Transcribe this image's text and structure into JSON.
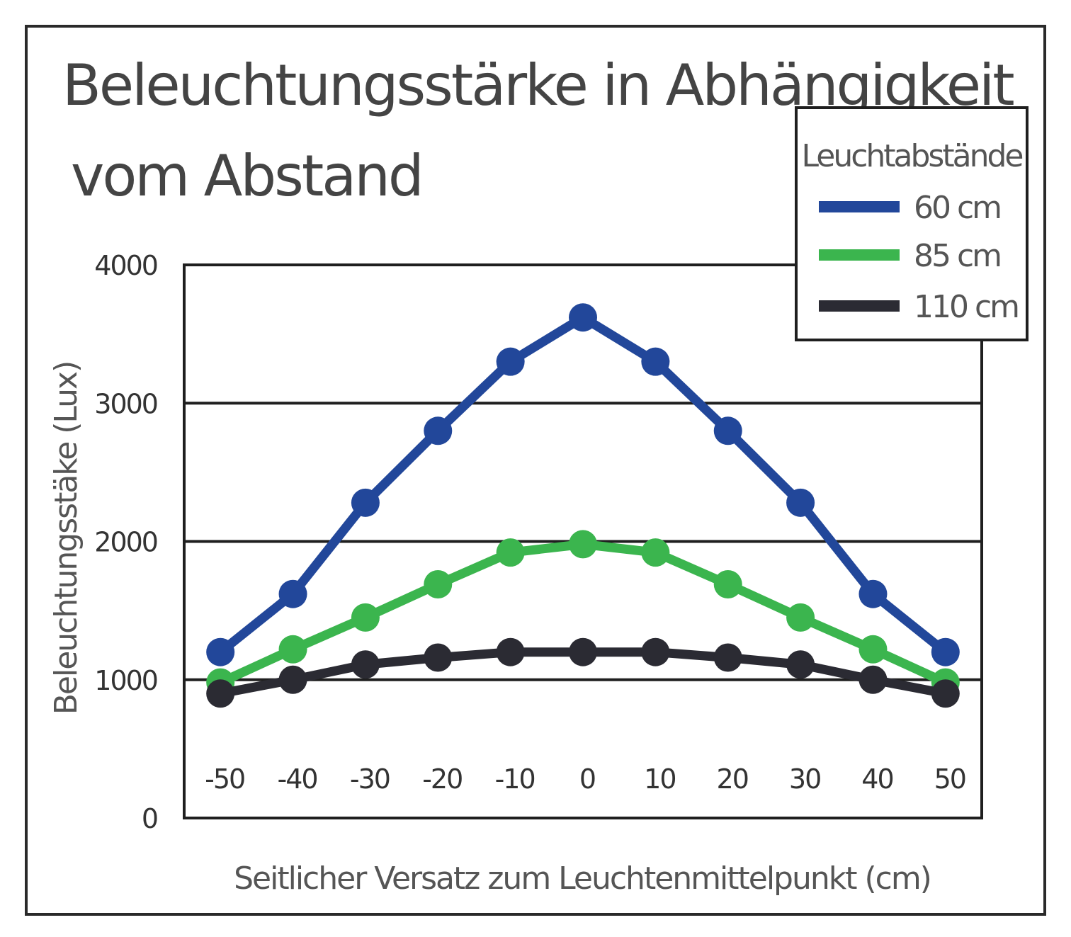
{
  "chart_data": {
    "type": "line",
    "title_lines": [
      "Beleuchtungsstärke in Abhängigkeit",
      "vom Abstand"
    ],
    "xlabel": "Seitlicher Versatz zum Leuchtenmittelpunkt (cm)",
    "ylabel": "Beleuchtungsstäke (Lux)",
    "x": [
      -50,
      -40,
      -30,
      -20,
      -10,
      0,
      10,
      20,
      30,
      40,
      50
    ],
    "x_tick_labels": [
      "-50",
      "-40",
      "-30",
      "-20",
      "-10",
      "0",
      "10",
      "20",
      "30",
      "40",
      "50"
    ],
    "y_ticks": [
      0,
      1000,
      2000,
      3000,
      4000
    ],
    "y_tick_labels": [
      "0",
      "1000",
      "2000",
      "3000",
      "4000"
    ],
    "ylim": [
      0,
      4000
    ],
    "grid": "horizontal",
    "legend_position": "top-right",
    "legend_title": "Leuchtabstände",
    "series": [
      {
        "name": "60 cm",
        "color": "#22479a",
        "values": [
          1200,
          1620,
          2280,
          2800,
          3300,
          3620,
          3300,
          2800,
          2280,
          1620,
          1200
        ]
      },
      {
        "name": "85 cm",
        "color": "#3bb54e",
        "values": [
          980,
          1220,
          1450,
          1690,
          1920,
          1980,
          1920,
          1690,
          1450,
          1220,
          980
        ]
      },
      {
        "name": "110 cm",
        "color": "#2b2b33",
        "values": [
          900,
          1000,
          1110,
          1160,
          1200,
          1200,
          1200,
          1160,
          1110,
          1000,
          900
        ]
      }
    ]
  }
}
